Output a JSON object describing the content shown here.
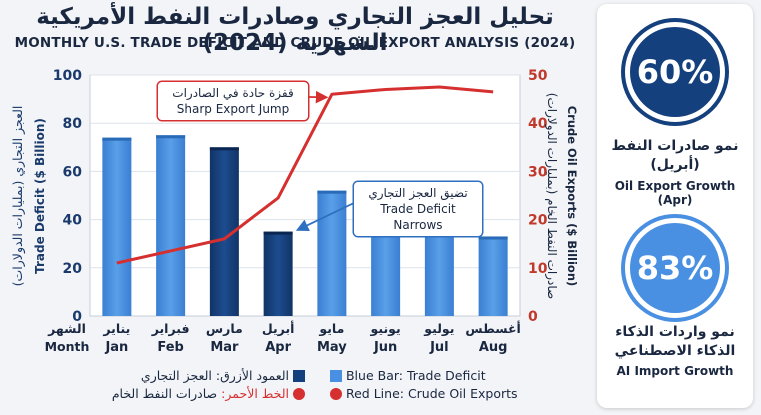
{
  "header": {
    "title_ar": "تحليل العجز التجاري وصادرات النفط الأمريكية الشهرية (2024)",
    "title_en": "MONTHLY U.S. TRADE DEFICIT AND CRUDE OIL EXPORT ANALYSIS (2024)"
  },
  "chart_data": {
    "type": "bar",
    "categories": [
      "Jan",
      "Feb",
      "Mar",
      "Apr",
      "May",
      "Jun",
      "Jul",
      "Aug"
    ],
    "categories_ar": [
      "يناير",
      "فبراير",
      "مارس",
      "أبريل",
      "مايو",
      "يونيو",
      "يوليو",
      "أغسطس"
    ],
    "x_header_ar": "الشهر",
    "x_header_en": "Month",
    "series": [
      {
        "name": "Trade Deficit",
        "type": "bar",
        "axis": "left",
        "values": [
          74,
          75,
          70,
          35,
          52,
          34,
          34,
          33
        ],
        "highlight": [
          false,
          false,
          true,
          true,
          false,
          false,
          false,
          false
        ]
      },
      {
        "name": "Crude Oil Exports",
        "type": "line",
        "axis": "right",
        "values": [
          11,
          13.5,
          16,
          24.5,
          46,
          47,
          47.5,
          46.5
        ]
      }
    ],
    "y_left": {
      "label_ar": "العجز التجاري (بمليارات الدولارات)",
      "label_en": "Trade Deficit ($ Billion)",
      "ticks": [
        0,
        20,
        40,
        60,
        80,
        100
      ],
      "range": [
        0,
        100
      ]
    },
    "y_right": {
      "label_ar": "صادرات النفط الخام (بمليارات الدولارات)",
      "label_en": "Crude Oil Exports ($ Billion)",
      "ticks": [
        0,
        10,
        20,
        30,
        40,
        50
      ],
      "range": [
        0,
        50
      ]
    },
    "grid": true,
    "annotations": [
      {
        "ar": "قفزة حادة في الصادرات",
        "en": "Sharp Export Jump",
        "target_index": 4,
        "series": "Crude Oil Exports"
      },
      {
        "ar": "تضيق العجز التجاري",
        "en": "Trade Deficit Narrows",
        "target_index": 3,
        "series": "Trade Deficit"
      }
    ]
  },
  "legend": {
    "blue_ar": "العمود الأزرق: العجز التجاري",
    "red_ar": "الخط الأحمر: صادرات النفط الخام",
    "red_ar_prefix": "الخط الأحمر:",
    "red_ar_rest": "صادرات النفط الخام",
    "blue_en": "Blue Bar: Trade Deficit",
    "red_en": "Red Line: Crude Oil Exports"
  },
  "stats": {
    "oil": {
      "value": "60%",
      "label_ar_1": "نمو صادرات النفط",
      "label_ar_2": "(أبريل)",
      "label_en": "Oil Export Growth (Apr)"
    },
    "ai": {
      "value": "83%",
      "label_ar_1": "نمو واردات الذكاء",
      "label_ar_2": "الذكاء الاصطناعي",
      "label_en": "AI Import Growth"
    }
  },
  "colors": {
    "bar": "#4a90e2",
    "bar_highlight": "#15407e",
    "line": "#d62f2f",
    "text": "#1a2740",
    "left_axis": "#1a3a6b",
    "right_axis": "#c0392b"
  }
}
